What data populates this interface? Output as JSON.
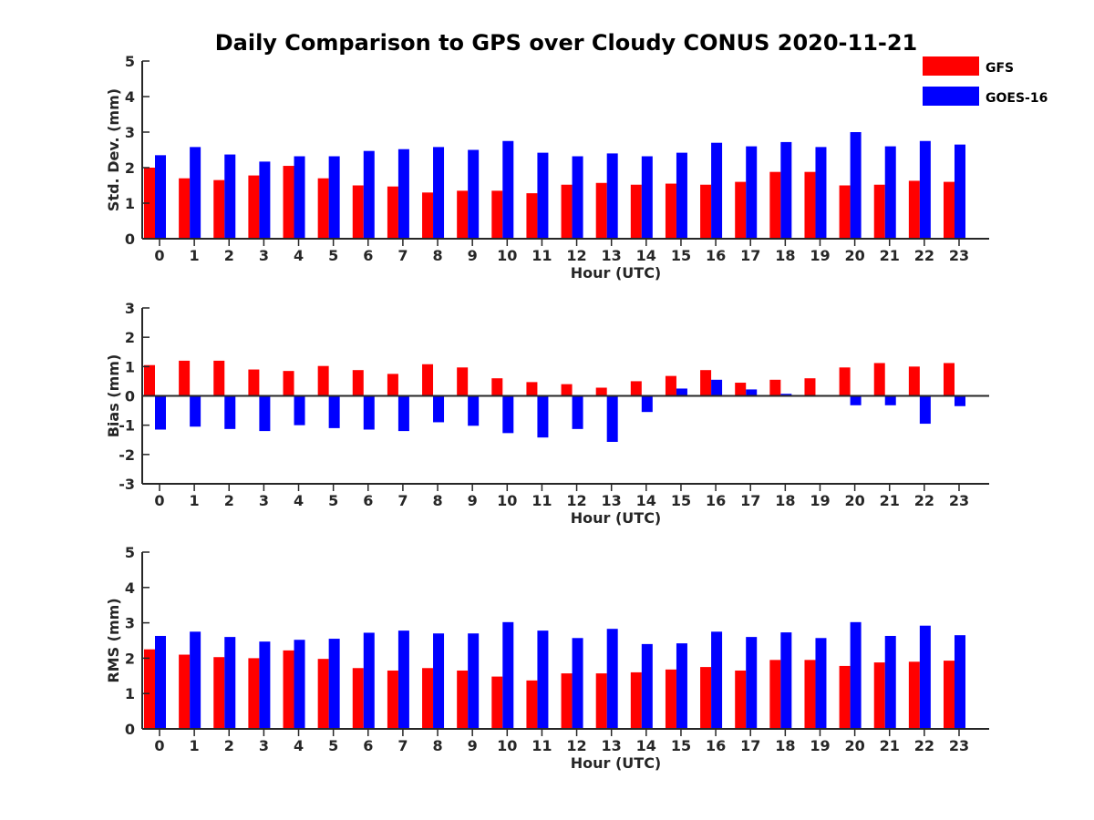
{
  "chart_data": {
    "title": "Daily Comparison to GPS over Cloudy CONUS 2020-11-21",
    "legend": {
      "placement": "top-right",
      "entries": [
        {
          "name": "GFS",
          "color": "#ff0000"
        },
        {
          "name": "GOES-16",
          "color": "#0000ff"
        }
      ]
    },
    "subplots": [
      {
        "type": "bar",
        "xlabel": "Hour (UTC)",
        "ylabel": "Std. Dev. (mm)",
        "ylim": [
          0,
          5
        ],
        "yticks": [
          0,
          1,
          2,
          3,
          4,
          5
        ],
        "categories": [
          "0",
          "1",
          "2",
          "3",
          "4",
          "5",
          "6",
          "7",
          "8",
          "9",
          "10",
          "11",
          "12",
          "13",
          "14",
          "15",
          "16",
          "17",
          "18",
          "19",
          "20",
          "21",
          "22",
          "23"
        ],
        "series": [
          {
            "name": "GFS",
            "color": "#ff0000",
            "values": [
              2.0,
              1.7,
              1.65,
              1.78,
              2.05,
              1.7,
              1.5,
              1.47,
              1.3,
              1.35,
              1.35,
              1.28,
              1.52,
              1.57,
              1.52,
              1.55,
              1.52,
              1.6,
              1.88,
              1.88,
              1.5,
              1.52,
              1.63,
              1.6
            ]
          },
          {
            "name": "GOES-16",
            "color": "#0000ff",
            "values": [
              2.35,
              2.58,
              2.37,
              2.17,
              2.32,
              2.32,
              2.47,
              2.52,
              2.58,
              2.5,
              2.75,
              2.42,
              2.32,
              2.4,
              2.32,
              2.42,
              2.7,
              2.6,
              2.72,
              2.58,
              3.0,
              2.6,
              2.75,
              2.65
            ]
          }
        ]
      },
      {
        "type": "bar",
        "xlabel": "Hour (UTC)",
        "ylabel": "Bias (mm)",
        "ylim": [
          -3,
          3
        ],
        "yticks": [
          -3,
          -2,
          -1,
          0,
          1,
          2,
          3
        ],
        "categories": [
          "0",
          "1",
          "2",
          "3",
          "4",
          "5",
          "6",
          "7",
          "8",
          "9",
          "10",
          "11",
          "12",
          "13",
          "14",
          "15",
          "16",
          "17",
          "18",
          "19",
          "20",
          "21",
          "22",
          "23"
        ],
        "series": [
          {
            "name": "GFS",
            "color": "#ff0000",
            "values": [
              1.05,
              1.2,
              1.2,
              0.9,
              0.85,
              1.02,
              0.88,
              0.75,
              1.08,
              0.97,
              0.6,
              0.47,
              0.4,
              0.28,
              0.5,
              0.68,
              0.88,
              0.45,
              0.55,
              0.6,
              0.97,
              1.12,
              1.0,
              1.12
            ]
          },
          {
            "name": "GOES-16",
            "color": "#0000ff",
            "values": [
              -1.15,
              -1.05,
              -1.13,
              -1.2,
              -1.0,
              -1.1,
              -1.15,
              -1.2,
              -0.9,
              -1.02,
              -1.27,
              -1.42,
              -1.13,
              -1.57,
              -0.55,
              0.25,
              0.55,
              0.22,
              0.07,
              0.02,
              -0.32,
              -0.32,
              -0.95,
              -0.35
            ]
          }
        ]
      },
      {
        "type": "bar",
        "xlabel": "Hour (UTC)",
        "ylabel": "RMS (mm)",
        "ylim": [
          0,
          5
        ],
        "yticks": [
          0,
          1,
          2,
          3,
          4,
          5
        ],
        "categories": [
          "0",
          "1",
          "2",
          "3",
          "4",
          "5",
          "6",
          "7",
          "8",
          "9",
          "10",
          "11",
          "12",
          "13",
          "14",
          "15",
          "16",
          "17",
          "18",
          "19",
          "20",
          "21",
          "22",
          "23"
        ],
        "series": [
          {
            "name": "GFS",
            "color": "#ff0000",
            "values": [
              2.25,
              2.1,
              2.03,
              2.0,
              2.22,
              1.98,
              1.72,
              1.65,
              1.72,
              1.65,
              1.48,
              1.37,
              1.57,
              1.57,
              1.6,
              1.68,
              1.75,
              1.65,
              1.95,
              1.95,
              1.78,
              1.88,
              1.9,
              1.93
            ]
          },
          {
            "name": "GOES-16",
            "color": "#0000ff",
            "values": [
              2.63,
              2.75,
              2.6,
              2.47,
              2.52,
              2.55,
              2.72,
              2.78,
              2.7,
              2.7,
              3.02,
              2.78,
              2.57,
              2.83,
              2.4,
              2.42,
              2.75,
              2.6,
              2.73,
              2.57,
              3.02,
              2.63,
              2.92,
              2.65
            ]
          }
        ]
      }
    ]
  }
}
